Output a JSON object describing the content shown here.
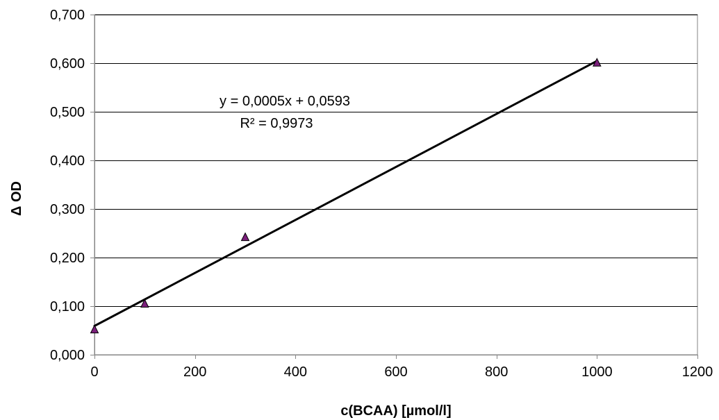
{
  "chart_data": {
    "type": "scatter",
    "title": "",
    "xlabel": "c(BCAA)   [µmol/l]",
    "ylabel": "Δ OD",
    "xlim": [
      0,
      1200
    ],
    "ylim": [
      0,
      0.7
    ],
    "x_ticks": [
      0,
      200,
      400,
      600,
      800,
      1000,
      1200
    ],
    "y_ticks": [
      0,
      0.1,
      0.2,
      0.3,
      0.4,
      0.5,
      0.6,
      0.7
    ],
    "x_tick_labels": [
      "0",
      "200",
      "400",
      "600",
      "800",
      "1000",
      "1200"
    ],
    "y_tick_labels": [
      "0,000",
      "0,100",
      "0,200",
      "0,300",
      "0,400",
      "0,500",
      "0,600",
      "0,700"
    ],
    "grid": "horizontal",
    "series": [
      {
        "marker": "triangle",
        "color": "#7b1f7b",
        "x": [
          0,
          100,
          300,
          1000
        ],
        "y": [
          0.052,
          0.105,
          0.242,
          0.601
        ]
      }
    ],
    "trendline": {
      "type": "linear",
      "slope": 0.0005453,
      "intercept": 0.0593,
      "x_range": [
        0,
        1000
      ],
      "equation": "y = 0,0005x  + 0,0593",
      "r_squared": "R² = 0,9973"
    }
  }
}
